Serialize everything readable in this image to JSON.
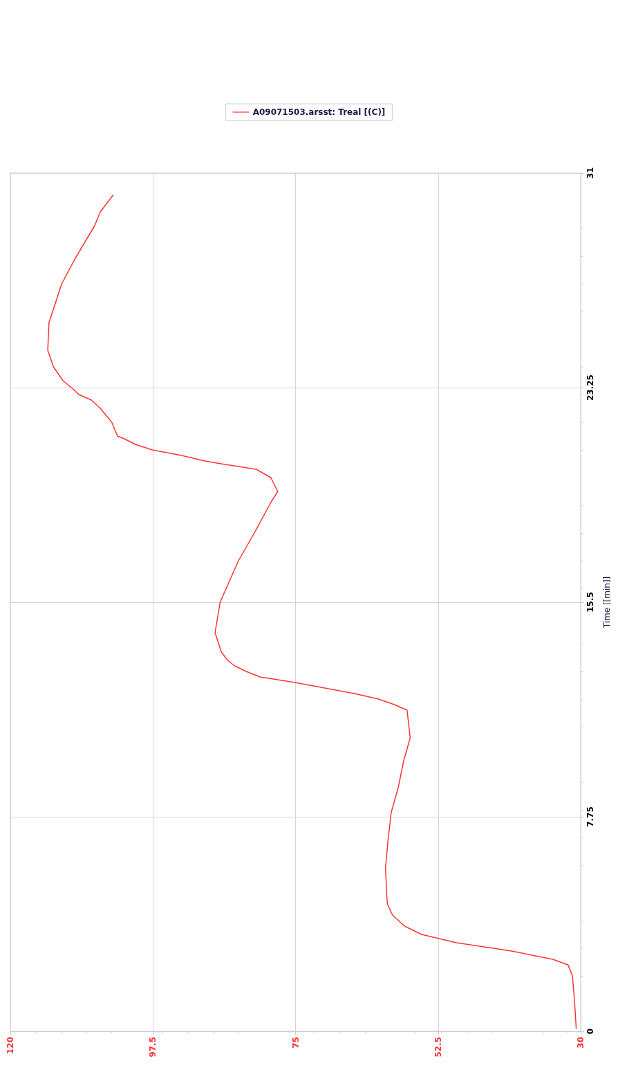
{
  "chart_data": {
    "type": "line",
    "ylabel": "Time [[min]]",
    "xlim": [
      120,
      30
    ],
    "xticks": [
      120,
      97.5,
      75,
      52.5,
      30
    ],
    "ylim": [
      0,
      31
    ],
    "yticks": [
      0,
      7.75,
      15.5,
      23.25,
      31
    ],
    "grid": true,
    "legend": "top",
    "marker": "none",
    "series": [
      {
        "name": "A09071503.arsst: Treal [(C)]",
        "color": "#ff3333",
        "x": [
          30.7,
          31.0,
          31.3,
          32.0,
          34.4,
          40.9,
          49.6,
          55.1,
          57.8,
          59.7,
          60.5,
          60.6,
          60.8,
          60.4,
          59.9,
          58.8,
          57.9,
          56.9,
          57.4,
          59.4,
          61.9,
          65.7,
          75.1,
          80.6,
          82.8,
          84.6,
          85.7,
          86.7,
          87.7,
          86.9,
          84.0,
          81.5,
          78.9,
          77.8,
          78.9,
          81.2,
          86.8,
          89.3,
          93.0,
          97.6,
          100.3,
          102.0,
          103.1,
          104.0,
          105.8,
          107.2,
          109.2,
          110.1,
          111.7,
          113.2,
          114.1,
          113.9,
          111.9,
          109.8,
          106.7,
          105.8,
          104.8,
          103.8
        ],
        "values": [
          0.1,
          1.2,
          2.0,
          2.4,
          2.6,
          2.9,
          3.2,
          3.5,
          3.8,
          4.2,
          4.6,
          4.9,
          5.9,
          6.9,
          7.9,
          8.8,
          9.8,
          10.6,
          11.6,
          11.8,
          12.0,
          12.2,
          12.6,
          12.8,
          13.0,
          13.2,
          13.4,
          13.7,
          14.4,
          15.5,
          17.0,
          18.0,
          19.1,
          19.5,
          20.0,
          20.3,
          20.5,
          20.6,
          20.8,
          21.0,
          21.2,
          21.4,
          21.5,
          22.0,
          22.5,
          22.8,
          23.0,
          23.2,
          23.5,
          24.0,
          24.6,
          25.6,
          27.0,
          27.9,
          29.1,
          29.6,
          29.9,
          30.2
        ]
      }
    ]
  }
}
